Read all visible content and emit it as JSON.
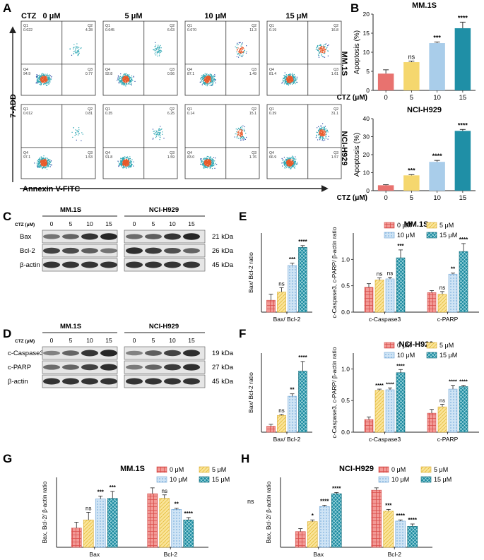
{
  "panel_letters": [
    "A",
    "B",
    "C",
    "D",
    "E",
    "F",
    "G",
    "H"
  ],
  "colors": {
    "c0": "#e8726f",
    "c5": "#f5d76e",
    "c10": "#a9cdea",
    "c15": "#1f8fa6",
    "band": "#1b1b1b",
    "scatter": "#2e4ea8",
    "hot": "#e85a2a",
    "mid": "#2fa8b5"
  },
  "panelA": {
    "label": "CTZ",
    "doses": [
      "0 μM",
      "5 μM",
      "10 μM",
      "15 μM"
    ],
    "ylabel": "7-ADD",
    "xlabel": "Annexin V-FITC",
    "quad_names": [
      "Q1",
      "Q2",
      "Q3",
      "Q4"
    ],
    "rows": [
      [
        [
          "0.022",
          "4.28",
          "0.77",
          "94.9"
        ],
        [
          "0.045",
          "6.63",
          "0.56",
          "92.8"
        ],
        [
          "0.070",
          "11.3",
          "1.49",
          "87.1"
        ],
        [
          "0.19",
          "16.8",
          "1.61",
          "81.4"
        ]
      ],
      [
        [
          "0.012",
          "0.81",
          "1.53",
          "97.1"
        ],
        [
          "0.35",
          "6.25",
          "1.59",
          "91.8"
        ],
        [
          "0.14",
          "15.1",
          "1.76",
          "83.0"
        ],
        [
          "0.39",
          "31.1",
          "1.57",
          "66.9"
        ]
      ]
    ]
  },
  "western": {
    "ctz_label": "CTZ (μM)",
    "groups": [
      "MM.1S",
      "NCI-H929"
    ],
    "doses": [
      "0",
      "5",
      "10",
      "15"
    ],
    "C": {
      "proteins": [
        "Bax",
        "Bcl-2",
        "β-actin"
      ],
      "kda": [
        "21 kDa",
        "26 kDa",
        "45 kDa"
      ]
    },
    "D": {
      "proteins": [
        "c-Caspase3",
        "c-PARP",
        "β-actin"
      ],
      "kda": [
        "19 kDa",
        "27 kDa",
        "45 kDa"
      ]
    }
  },
  "legend": [
    "0 μM",
    "5 μM",
    "10 μM",
    "15 μM"
  ],
  "chart_data": [
    {
      "id": "B1",
      "type": "bar",
      "title": "MM.1S",
      "side_label": "MM.1S",
      "ylabel": "Apoptosis (%)",
      "xlabel": "CTZ (μM)",
      "categories": [
        "0",
        "5",
        "10",
        "15"
      ],
      "values": [
        4.4,
        7.4,
        12.4,
        16.3
      ],
      "errors": [
        1.0,
        0.3,
        0.3,
        1.6
      ],
      "sig": [
        "",
        "ns",
        "***",
        "****"
      ],
      "ylim": [
        0,
        20
      ],
      "yticks": [
        "0",
        "5",
        "10",
        "15",
        "20"
      ]
    },
    {
      "id": "B2",
      "type": "bar",
      "title": "NCI-H929",
      "side_label": "NCI-H929",
      "ylabel": "Apoptosis (%)",
      "xlabel": "CTZ (μM)",
      "categories": [
        "0",
        "5",
        "10",
        "15"
      ],
      "values": [
        3.0,
        8.5,
        16.0,
        33.2
      ],
      "errors": [
        0.3,
        0.4,
        0.8,
        0.8
      ],
      "sig": [
        "",
        "***",
        "****",
        "****"
      ],
      "ylim": [
        0,
        40
      ],
      "yticks": [
        "0",
        "10",
        "20",
        "30",
        "40"
      ]
    },
    {
      "id": "E1",
      "type": "bar",
      "title": "",
      "ylabel": "Bax/ Bcl-2 ratio",
      "groups": [
        "Bax/ Bcl-2"
      ],
      "series": [
        {
          "name": "0 μM",
          "values": [
            0.33
          ],
          "errors": [
            0.17
          ]
        },
        {
          "name": "5 μM",
          "values": [
            0.56
          ],
          "errors": [
            0.12
          ]
        },
        {
          "name": "10 μM",
          "values": [
            1.3
          ],
          "errors": [
            0.06
          ]
        },
        {
          "name": "15 μM",
          "values": [
            1.8
          ],
          "errors": [
            0.05
          ]
        }
      ],
      "sig": [
        [
          "",
          "ns",
          "***",
          "****"
        ]
      ],
      "ylim": [
        0,
        2.2
      ],
      "yticks": []
    },
    {
      "id": "E2",
      "type": "bar",
      "title": "MM.1S",
      "ylabel": "c-Caspase3, c-PARP/ β-actin ratio",
      "groups": [
        "c-Caspase3",
        "c-PARP"
      ],
      "series": [
        {
          "name": "0 μM",
          "values": [
            0.47,
            0.37
          ],
          "errors": [
            0.07,
            0.04
          ]
        },
        {
          "name": "5 μM",
          "values": [
            0.61,
            0.34
          ],
          "errors": [
            0.04,
            0.05
          ]
        },
        {
          "name": "10 μM",
          "values": [
            0.63,
            0.72
          ],
          "errors": [
            0.03,
            0.02
          ]
        },
        {
          "name": "15 μM",
          "values": [
            1.03,
            1.15
          ],
          "errors": [
            0.15,
            0.15
          ]
        }
      ],
      "sig": [
        [
          "",
          "ns",
          "ns",
          "***"
        ],
        [
          "",
          "ns",
          "**",
          "****"
        ]
      ],
      "ylim": [
        0,
        1.5
      ],
      "yticks": [
        "0.0",
        "0.5",
        "1.0"
      ]
    },
    {
      "id": "F1",
      "type": "bar",
      "title": "",
      "ylabel": "Bax/ Bcl-2 ratio",
      "groups": [
        "Bax/ Bcl-2"
      ],
      "series": [
        {
          "name": "0 μM",
          "values": [
            0.25
          ],
          "errors": [
            0.08
          ]
        },
        {
          "name": "5 μM",
          "values": [
            0.7
          ],
          "errors": [
            0.04
          ]
        },
        {
          "name": "10 μM",
          "values": [
            1.5
          ],
          "errors": [
            0.1
          ]
        },
        {
          "name": "15 μM",
          "values": [
            2.55
          ],
          "errors": [
            0.4
          ]
        }
      ],
      "sig": [
        [
          "",
          "ns",
          "**",
          "****"
        ]
      ],
      "ylim": [
        0,
        3.3
      ],
      "yticks": []
    },
    {
      "id": "F2",
      "type": "bar",
      "title": "NCI-H929",
      "ylabel": "c-Caspase3, c-PARP/ β-actin ratio",
      "groups": [
        "c-Caspase3",
        "c-PARP"
      ],
      "series": [
        {
          "name": "0 μM",
          "values": [
            0.2,
            0.3
          ],
          "errors": [
            0.04,
            0.06
          ]
        },
        {
          "name": "5 μM",
          "values": [
            0.66,
            0.4
          ],
          "errors": [
            0.02,
            0.04
          ]
        },
        {
          "name": "10 μM",
          "values": [
            0.67,
            0.68
          ],
          "errors": [
            0.03,
            0.06
          ]
        },
        {
          "name": "15 μM",
          "values": [
            0.94,
            0.72
          ],
          "errors": [
            0.05,
            0.02
          ]
        }
      ],
      "sig": [
        [
          "",
          "****",
          "****",
          "****"
        ],
        [
          "",
          "ns",
          "****",
          "****"
        ]
      ],
      "ylim": [
        0,
        1.25
      ],
      "yticks": [
        "0.0",
        "0.5",
        "1.0"
      ]
    },
    {
      "id": "G",
      "type": "bar",
      "title": "MM.1S",
      "ylabel": "Bax, Bcl-2/ β-actin ratio",
      "groups": [
        "Bax",
        "Bcl-2"
      ],
      "series": [
        {
          "name": "0 μM",
          "values": [
            0.33,
            0.92
          ],
          "errors": [
            0.1,
            0.1
          ]
        },
        {
          "name": "5 μM",
          "values": [
            0.47,
            0.84
          ],
          "errors": [
            0.13,
            0.06
          ]
        },
        {
          "name": "10 μM",
          "values": [
            0.83,
            0.65
          ],
          "errors": [
            0.05,
            0.02
          ]
        },
        {
          "name": "15 μM",
          "values": [
            0.84,
            0.47
          ],
          "errors": [
            0.12,
            0.04
          ]
        }
      ],
      "sig": [
        [
          "",
          "ns",
          "***",
          "***"
        ],
        [
          "",
          "ns",
          "**",
          "****"
        ]
      ],
      "ylim": [
        0,
        1.2
      ],
      "yticks": []
    },
    {
      "id": "H",
      "type": "bar",
      "title": "NCI-H929",
      "ylabel": "Bax, Bcl-2/ β-actin ratio",
      "groups": [
        "Bax",
        "Bcl-2"
      ],
      "series": [
        {
          "name": "0 μM",
          "values": [
            0.27,
            0.98
          ],
          "errors": [
            0.05,
            0.04
          ]
        },
        {
          "name": "5 μM",
          "values": [
            0.44,
            0.62
          ],
          "errors": [
            0.03,
            0.03
          ]
        },
        {
          "name": "10 μM",
          "values": [
            0.7,
            0.45
          ],
          "errors": [
            0.02,
            0.02
          ]
        },
        {
          "name": "15 μM",
          "values": [
            0.92,
            0.36
          ],
          "errors": [
            0.02,
            0.04
          ]
        }
      ],
      "sig": [
        [
          "",
          "*",
          "****",
          "****"
        ],
        [
          "",
          "***",
          "****",
          "****"
        ]
      ],
      "ylim": [
        0,
        1.2
      ],
      "yticks": []
    }
  ],
  "h_side_note": "ns"
}
